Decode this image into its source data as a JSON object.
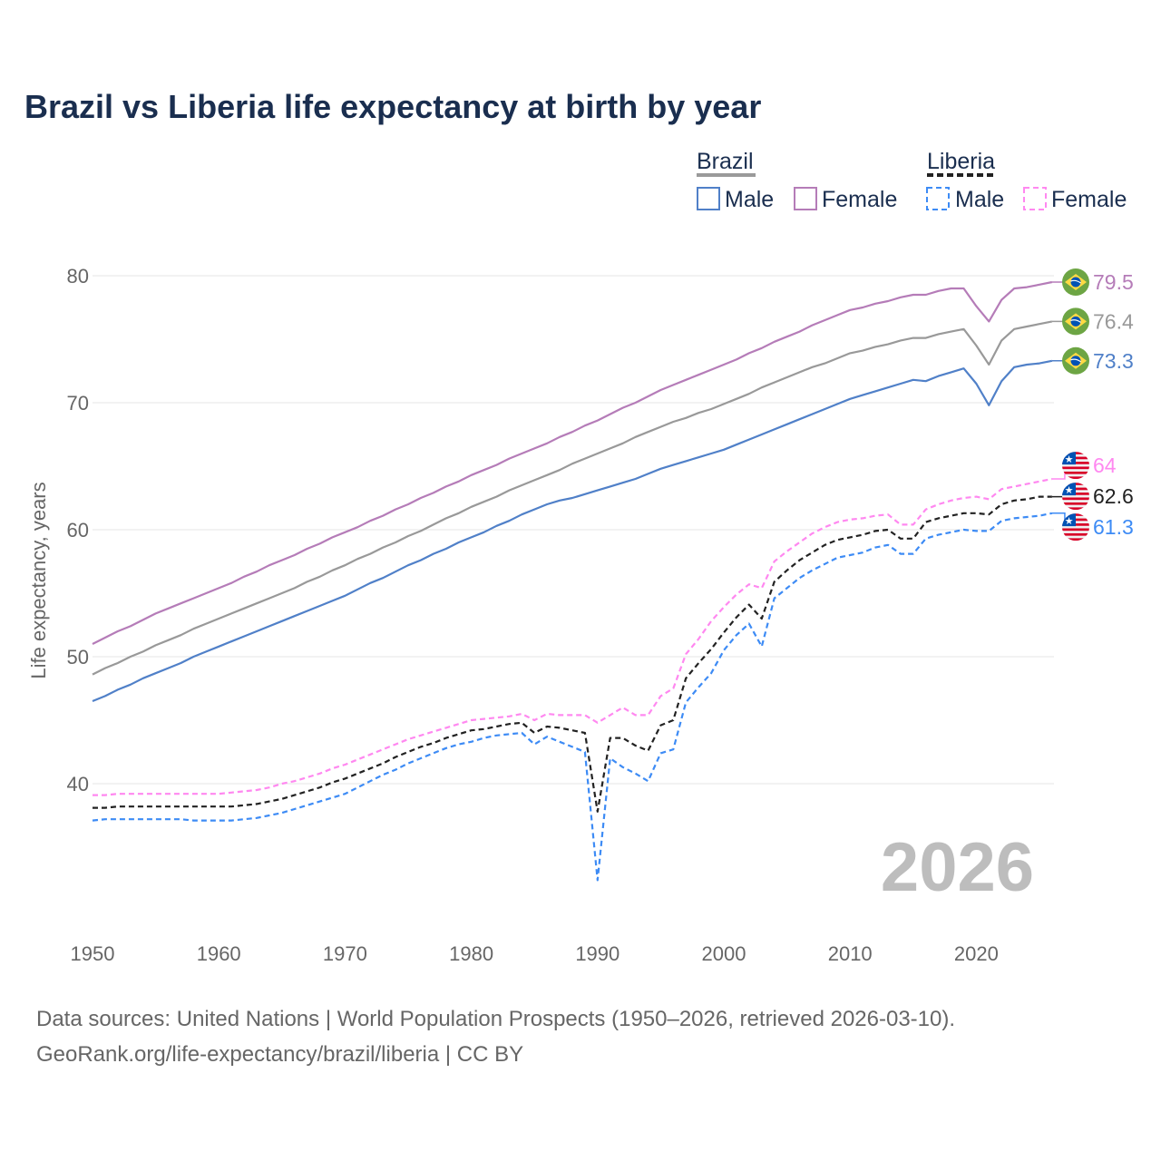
{
  "chart_data": {
    "type": "line",
    "title": "Brazil vs Liberia life expectancy at birth by year",
    "xlabel": "",
    "ylabel": "Life expectancy, years",
    "xlim": [
      1950,
      2026
    ],
    "ylim": [
      30,
      82
    ],
    "x_ticks": [
      "1950",
      "1960",
      "1970",
      "1980",
      "1990",
      "2000",
      "2010",
      "2020"
    ],
    "y_ticks": [
      "40",
      "50",
      "60",
      "70",
      "80"
    ],
    "grid": true,
    "year_watermark": "2026",
    "legend": {
      "placement": "top-right",
      "groups": [
        {
          "name": "Brazil",
          "items": [
            "Male",
            "Female"
          ]
        },
        {
          "name": "Liberia",
          "items": [
            "Male",
            "Female"
          ]
        }
      ]
    },
    "x_start": 1950,
    "series": [
      {
        "name": "Brazil Female",
        "country": "Brazil",
        "color": "#b57cb8",
        "dashed": false,
        "end_label": "79.5",
        "values": [
          51.0,
          51.5,
          52.0,
          52.4,
          52.9,
          53.4,
          53.8,
          54.2,
          54.6,
          55.0,
          55.4,
          55.8,
          56.3,
          56.7,
          57.2,
          57.6,
          58.0,
          58.5,
          58.9,
          59.4,
          59.8,
          60.2,
          60.7,
          61.1,
          61.6,
          62.0,
          62.5,
          62.9,
          63.4,
          63.8,
          64.3,
          64.7,
          65.1,
          65.6,
          66.0,
          66.4,
          66.8,
          67.3,
          67.7,
          68.2,
          68.6,
          69.1,
          69.6,
          70.0,
          70.5,
          71.0,
          71.4,
          71.8,
          72.2,
          72.6,
          73.0,
          73.4,
          73.9,
          74.3,
          74.8,
          75.2,
          75.6,
          76.1,
          76.5,
          76.9,
          77.3,
          77.5,
          77.8,
          78.0,
          78.3,
          78.5,
          78.5,
          78.8,
          79.0,
          79.0,
          77.6,
          76.4,
          78.1,
          79.0,
          79.1,
          79.3,
          79.5
        ]
      },
      {
        "name": "Brazil Total",
        "country": "Brazil",
        "color": "#999999",
        "dashed": false,
        "end_label": "76.4",
        "values": [
          48.6,
          49.1,
          49.5,
          50.0,
          50.4,
          50.9,
          51.3,
          51.7,
          52.2,
          52.6,
          53.0,
          53.4,
          53.8,
          54.2,
          54.6,
          55.0,
          55.4,
          55.9,
          56.3,
          56.8,
          57.2,
          57.7,
          58.1,
          58.6,
          59.0,
          59.5,
          59.9,
          60.4,
          60.9,
          61.3,
          61.8,
          62.2,
          62.6,
          63.1,
          63.5,
          63.9,
          64.3,
          64.7,
          65.2,
          65.6,
          66.0,
          66.4,
          66.8,
          67.3,
          67.7,
          68.1,
          68.5,
          68.8,
          69.2,
          69.5,
          69.9,
          70.3,
          70.7,
          71.2,
          71.6,
          72.0,
          72.4,
          72.8,
          73.1,
          73.5,
          73.9,
          74.1,
          74.4,
          74.6,
          74.9,
          75.1,
          75.1,
          75.4,
          75.6,
          75.8,
          74.5,
          73.0,
          74.9,
          75.8,
          76.0,
          76.2,
          76.4
        ]
      },
      {
        "name": "Brazil Male",
        "country": "Brazil",
        "color": "#5080c8",
        "dashed": false,
        "end_label": "73.3",
        "values": [
          46.5,
          46.9,
          47.4,
          47.8,
          48.3,
          48.7,
          49.1,
          49.5,
          50.0,
          50.4,
          50.8,
          51.2,
          51.6,
          52.0,
          52.4,
          52.8,
          53.2,
          53.6,
          54.0,
          54.4,
          54.8,
          55.3,
          55.8,
          56.2,
          56.7,
          57.2,
          57.6,
          58.1,
          58.5,
          59.0,
          59.4,
          59.8,
          60.3,
          60.7,
          61.2,
          61.6,
          62.0,
          62.3,
          62.5,
          62.8,
          63.1,
          63.4,
          63.7,
          64.0,
          64.4,
          64.8,
          65.1,
          65.4,
          65.7,
          66.0,
          66.3,
          66.7,
          67.1,
          67.5,
          67.9,
          68.3,
          68.7,
          69.1,
          69.5,
          69.9,
          70.3,
          70.6,
          70.9,
          71.2,
          71.5,
          71.8,
          71.7,
          72.1,
          72.4,
          72.7,
          71.5,
          69.8,
          71.7,
          72.8,
          73.0,
          73.1,
          73.3
        ]
      },
      {
        "name": "Liberia Female",
        "country": "Liberia",
        "color": "#ff88f0",
        "dashed": true,
        "end_label": "64",
        "values": [
          39.1,
          39.1,
          39.2,
          39.2,
          39.2,
          39.2,
          39.2,
          39.2,
          39.2,
          39.2,
          39.2,
          39.3,
          39.4,
          39.5,
          39.7,
          40.0,
          40.2,
          40.5,
          40.8,
          41.2,
          41.5,
          41.9,
          42.3,
          42.7,
          43.1,
          43.5,
          43.8,
          44.1,
          44.4,
          44.7,
          45.0,
          45.1,
          45.2,
          45.3,
          45.5,
          45.0,
          45.5,
          45.4,
          45.4,
          45.4,
          44.8,
          45.4,
          46.0,
          45.4,
          45.4,
          46.9,
          47.5,
          50.2,
          51.4,
          52.8,
          53.9,
          54.9,
          55.7,
          55.4,
          57.5,
          58.3,
          59.0,
          59.7,
          60.2,
          60.6,
          60.8,
          60.9,
          61.1,
          61.2,
          60.4,
          60.4,
          61.6,
          62.0,
          62.3,
          62.5,
          62.6,
          62.4,
          63.2,
          63.4,
          63.6,
          63.8,
          64.0
        ]
      },
      {
        "name": "Liberia Total",
        "country": "Liberia",
        "color": "#222222",
        "dashed": true,
        "end_label": "62.6",
        "values": [
          38.1,
          38.1,
          38.2,
          38.2,
          38.2,
          38.2,
          38.2,
          38.2,
          38.2,
          38.2,
          38.2,
          38.2,
          38.3,
          38.4,
          38.6,
          38.8,
          39.1,
          39.4,
          39.7,
          40.1,
          40.4,
          40.8,
          41.2,
          41.6,
          42.1,
          42.5,
          42.9,
          43.2,
          43.6,
          43.9,
          44.2,
          44.3,
          44.5,
          44.7,
          44.8,
          44.0,
          44.5,
          44.4,
          44.2,
          44.0,
          37.8,
          43.6,
          43.6,
          43.0,
          42.6,
          44.6,
          45.0,
          48.3,
          49.5,
          50.6,
          51.9,
          53.1,
          54.1,
          53.0,
          55.9,
          56.8,
          57.6,
          58.2,
          58.8,
          59.2,
          59.4,
          59.6,
          59.9,
          60.0,
          59.3,
          59.3,
          60.6,
          60.9,
          61.1,
          61.3,
          61.3,
          61.2,
          62.0,
          62.3,
          62.4,
          62.6,
          62.6
        ]
      },
      {
        "name": "Liberia Male",
        "country": "Liberia",
        "color": "#3d8bf5",
        "dashed": true,
        "end_label": "61.3",
        "values": [
          37.1,
          37.2,
          37.2,
          37.2,
          37.2,
          37.2,
          37.2,
          37.2,
          37.1,
          37.1,
          37.1,
          37.1,
          37.2,
          37.3,
          37.5,
          37.7,
          38.0,
          38.3,
          38.6,
          38.9,
          39.2,
          39.7,
          40.2,
          40.7,
          41.1,
          41.6,
          42.0,
          42.4,
          42.8,
          43.1,
          43.3,
          43.6,
          43.8,
          43.9,
          44.0,
          43.1,
          43.7,
          43.3,
          42.9,
          42.5,
          32.4,
          42.0,
          41.3,
          40.8,
          40.2,
          42.4,
          42.7,
          46.4,
          47.6,
          48.7,
          50.5,
          51.7,
          52.6,
          50.8,
          54.6,
          55.4,
          56.2,
          56.8,
          57.3,
          57.8,
          58.0,
          58.2,
          58.6,
          58.8,
          58.1,
          58.1,
          59.3,
          59.6,
          59.8,
          60.0,
          59.9,
          59.9,
          60.7,
          60.9,
          61.0,
          61.1,
          61.3
        ]
      }
    ]
  },
  "footer": {
    "line1": "Data sources: United Nations | World Population Prospects (1950–2026, retrieved 2026-03-10).",
    "line2": "GeoRank.org/life-expectancy/brazil/liberia | CC BY"
  }
}
